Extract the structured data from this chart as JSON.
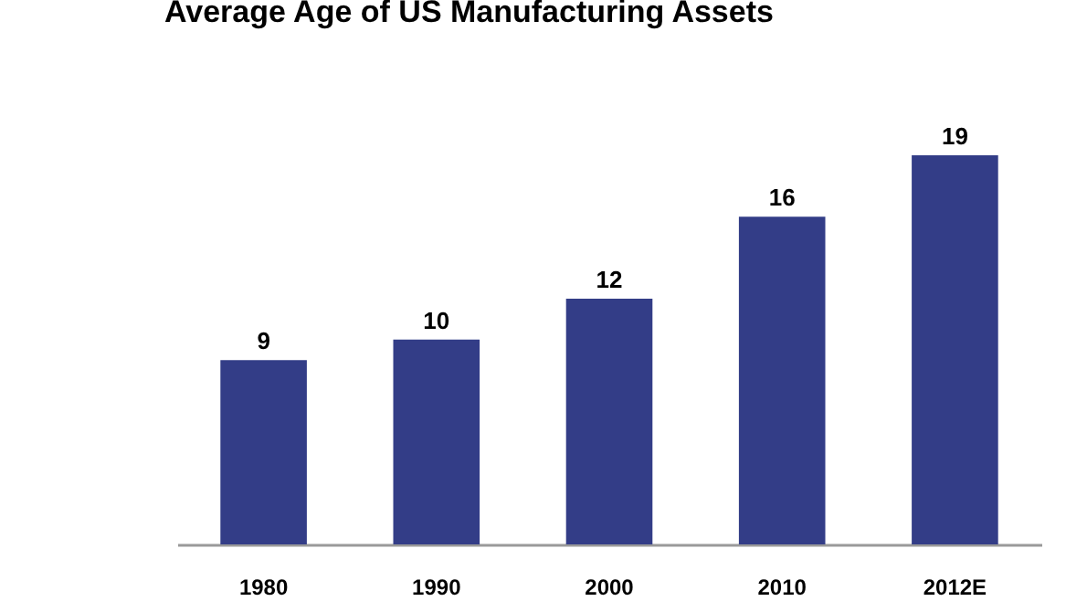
{
  "chart_data": {
    "type": "bar",
    "title": "Average Age of US Manufacturing Assets",
    "categories": [
      "1980",
      "1990",
      "2000",
      "2010",
      "2012E"
    ],
    "values": [
      9,
      10,
      12,
      16,
      19
    ],
    "color": "#333d87",
    "data_labels": true,
    "tick_labels": "x"
  }
}
